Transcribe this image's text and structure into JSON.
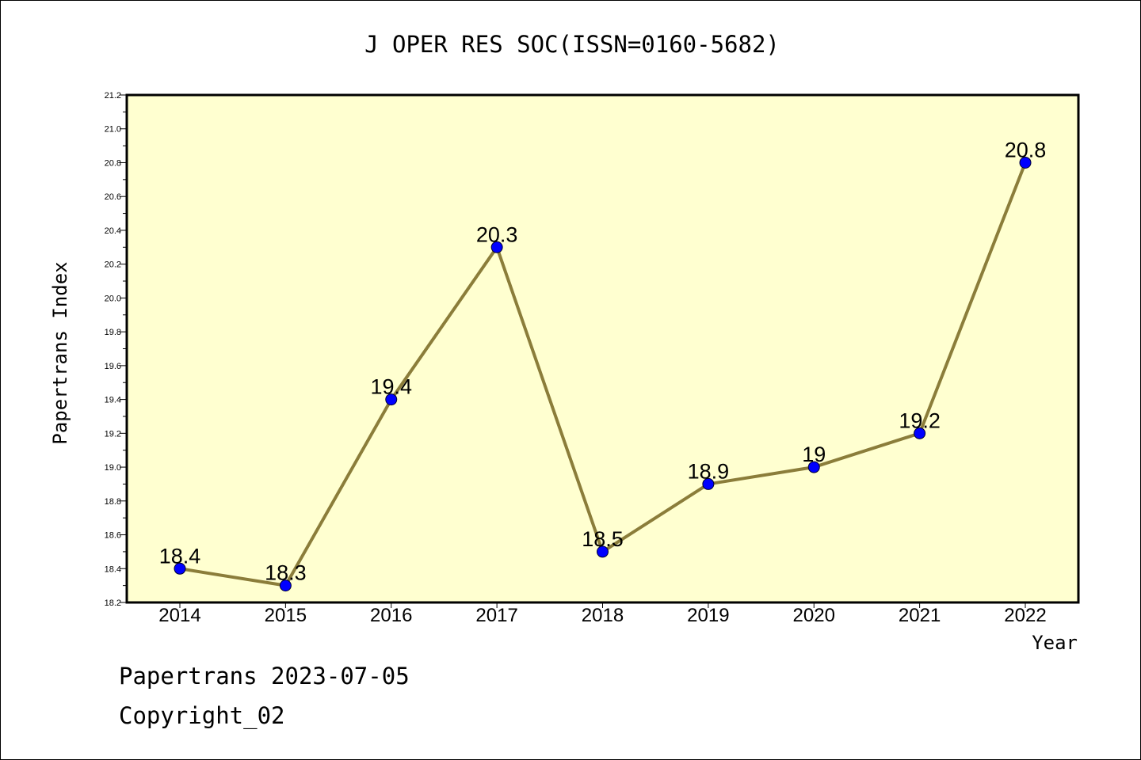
{
  "chart_data": {
    "type": "line",
    "title": "J OPER RES SOC(ISSN=0160-5682)",
    "xlabel": "Year",
    "ylabel": "Papertrans Index",
    "categories": [
      "2014",
      "2015",
      "2016",
      "2017",
      "2018",
      "2019",
      "2020",
      "2021",
      "2022"
    ],
    "values": [
      18.4,
      18.3,
      19.4,
      20.3,
      18.5,
      18.9,
      19.0,
      19.2,
      20.8
    ],
    "data_labels": [
      "18.4",
      "18.3",
      "19.4",
      "20.3",
      "18.5",
      "18.9",
      "19",
      "19.2",
      "20.8"
    ],
    "ylim": [
      18.2,
      21.2
    ],
    "y_ticks": [
      "18.2",
      "18.4",
      "18.6",
      "18.8",
      "19.0",
      "19.2",
      "19.4",
      "19.6",
      "19.8",
      "20.0",
      "20.2",
      "20.4",
      "20.6",
      "20.8",
      "21.0",
      "21.2"
    ],
    "grid": false,
    "legend": "none",
    "colors": {
      "plot_background": "#ffffd0",
      "line": "#8b7d3a",
      "marker": "#0000ff"
    }
  },
  "footer": {
    "line1": "Papertrans 2023-07-05",
    "line2": "Copyright_02"
  }
}
